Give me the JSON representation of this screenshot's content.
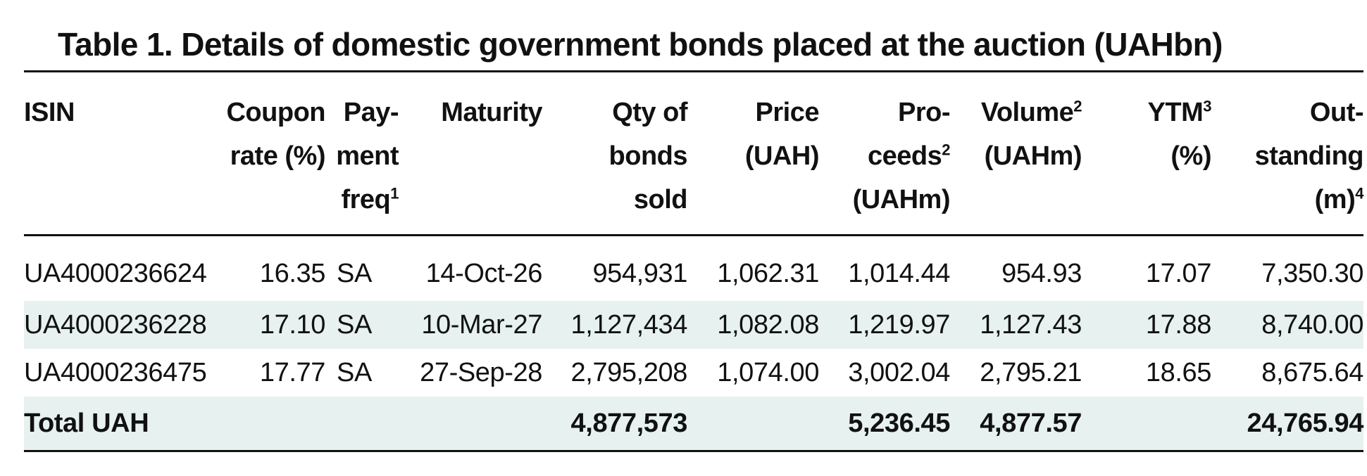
{
  "title": "Table 1. Details of domestic government bonds placed at the auction (UAHbn)",
  "headers": {
    "isin": "ISIN",
    "coupon": [
      "Coupon",
      "rate (%)"
    ],
    "payment": [
      "Pay-",
      "ment",
      "freq"
    ],
    "payment_sup": "1",
    "maturity": "Maturity",
    "qty": [
      "Qty of",
      "bonds",
      "sold"
    ],
    "price": [
      "Price",
      "(UAH)"
    ],
    "proceeds": [
      "Pro-",
      "ceeds",
      "(UAHm)"
    ],
    "proceeds_sup": "2",
    "volume": [
      "Volume",
      "(UAHm)"
    ],
    "volume_sup": "2",
    "ytm": [
      "YTM",
      "(%)"
    ],
    "ytm_sup": "3",
    "outstanding": [
      "Out-",
      "standing",
      "(m)"
    ],
    "outstanding_sup": "4"
  },
  "rows": [
    {
      "isin": "UA4000236624",
      "coupon": "16.35",
      "payment": "SA",
      "maturity": "14-Oct-26",
      "qty": "954,931",
      "price": "1,062.31",
      "proceeds": "1,014.44",
      "volume": "954.93",
      "ytm": "17.07",
      "outstanding": "7,350.30"
    },
    {
      "isin": "UA4000236228",
      "coupon": "17.10",
      "payment": "SA",
      "maturity": "10-Mar-27",
      "qty": "1,127,434",
      "price": "1,082.08",
      "proceeds": "1,219.97",
      "volume": "1,127.43",
      "ytm": "17.88",
      "outstanding": "8,740.00"
    },
    {
      "isin": "UA4000236475",
      "coupon": "17.77",
      "payment": "SA",
      "maturity": "27-Sep-28",
      "qty": "2,795,208",
      "price": "1,074.00",
      "proceeds": "3,002.04",
      "volume": "2,795.21",
      "ytm": "18.65",
      "outstanding": "8,675.64"
    }
  ],
  "total": {
    "label": "Total UAH",
    "qty": "4,877,573",
    "proceeds": "5,236.45",
    "volume": "4,877.57",
    "outstanding": "24,765.94"
  },
  "colors": {
    "row_shading": "#e6f1f0",
    "rule": "#111111"
  }
}
